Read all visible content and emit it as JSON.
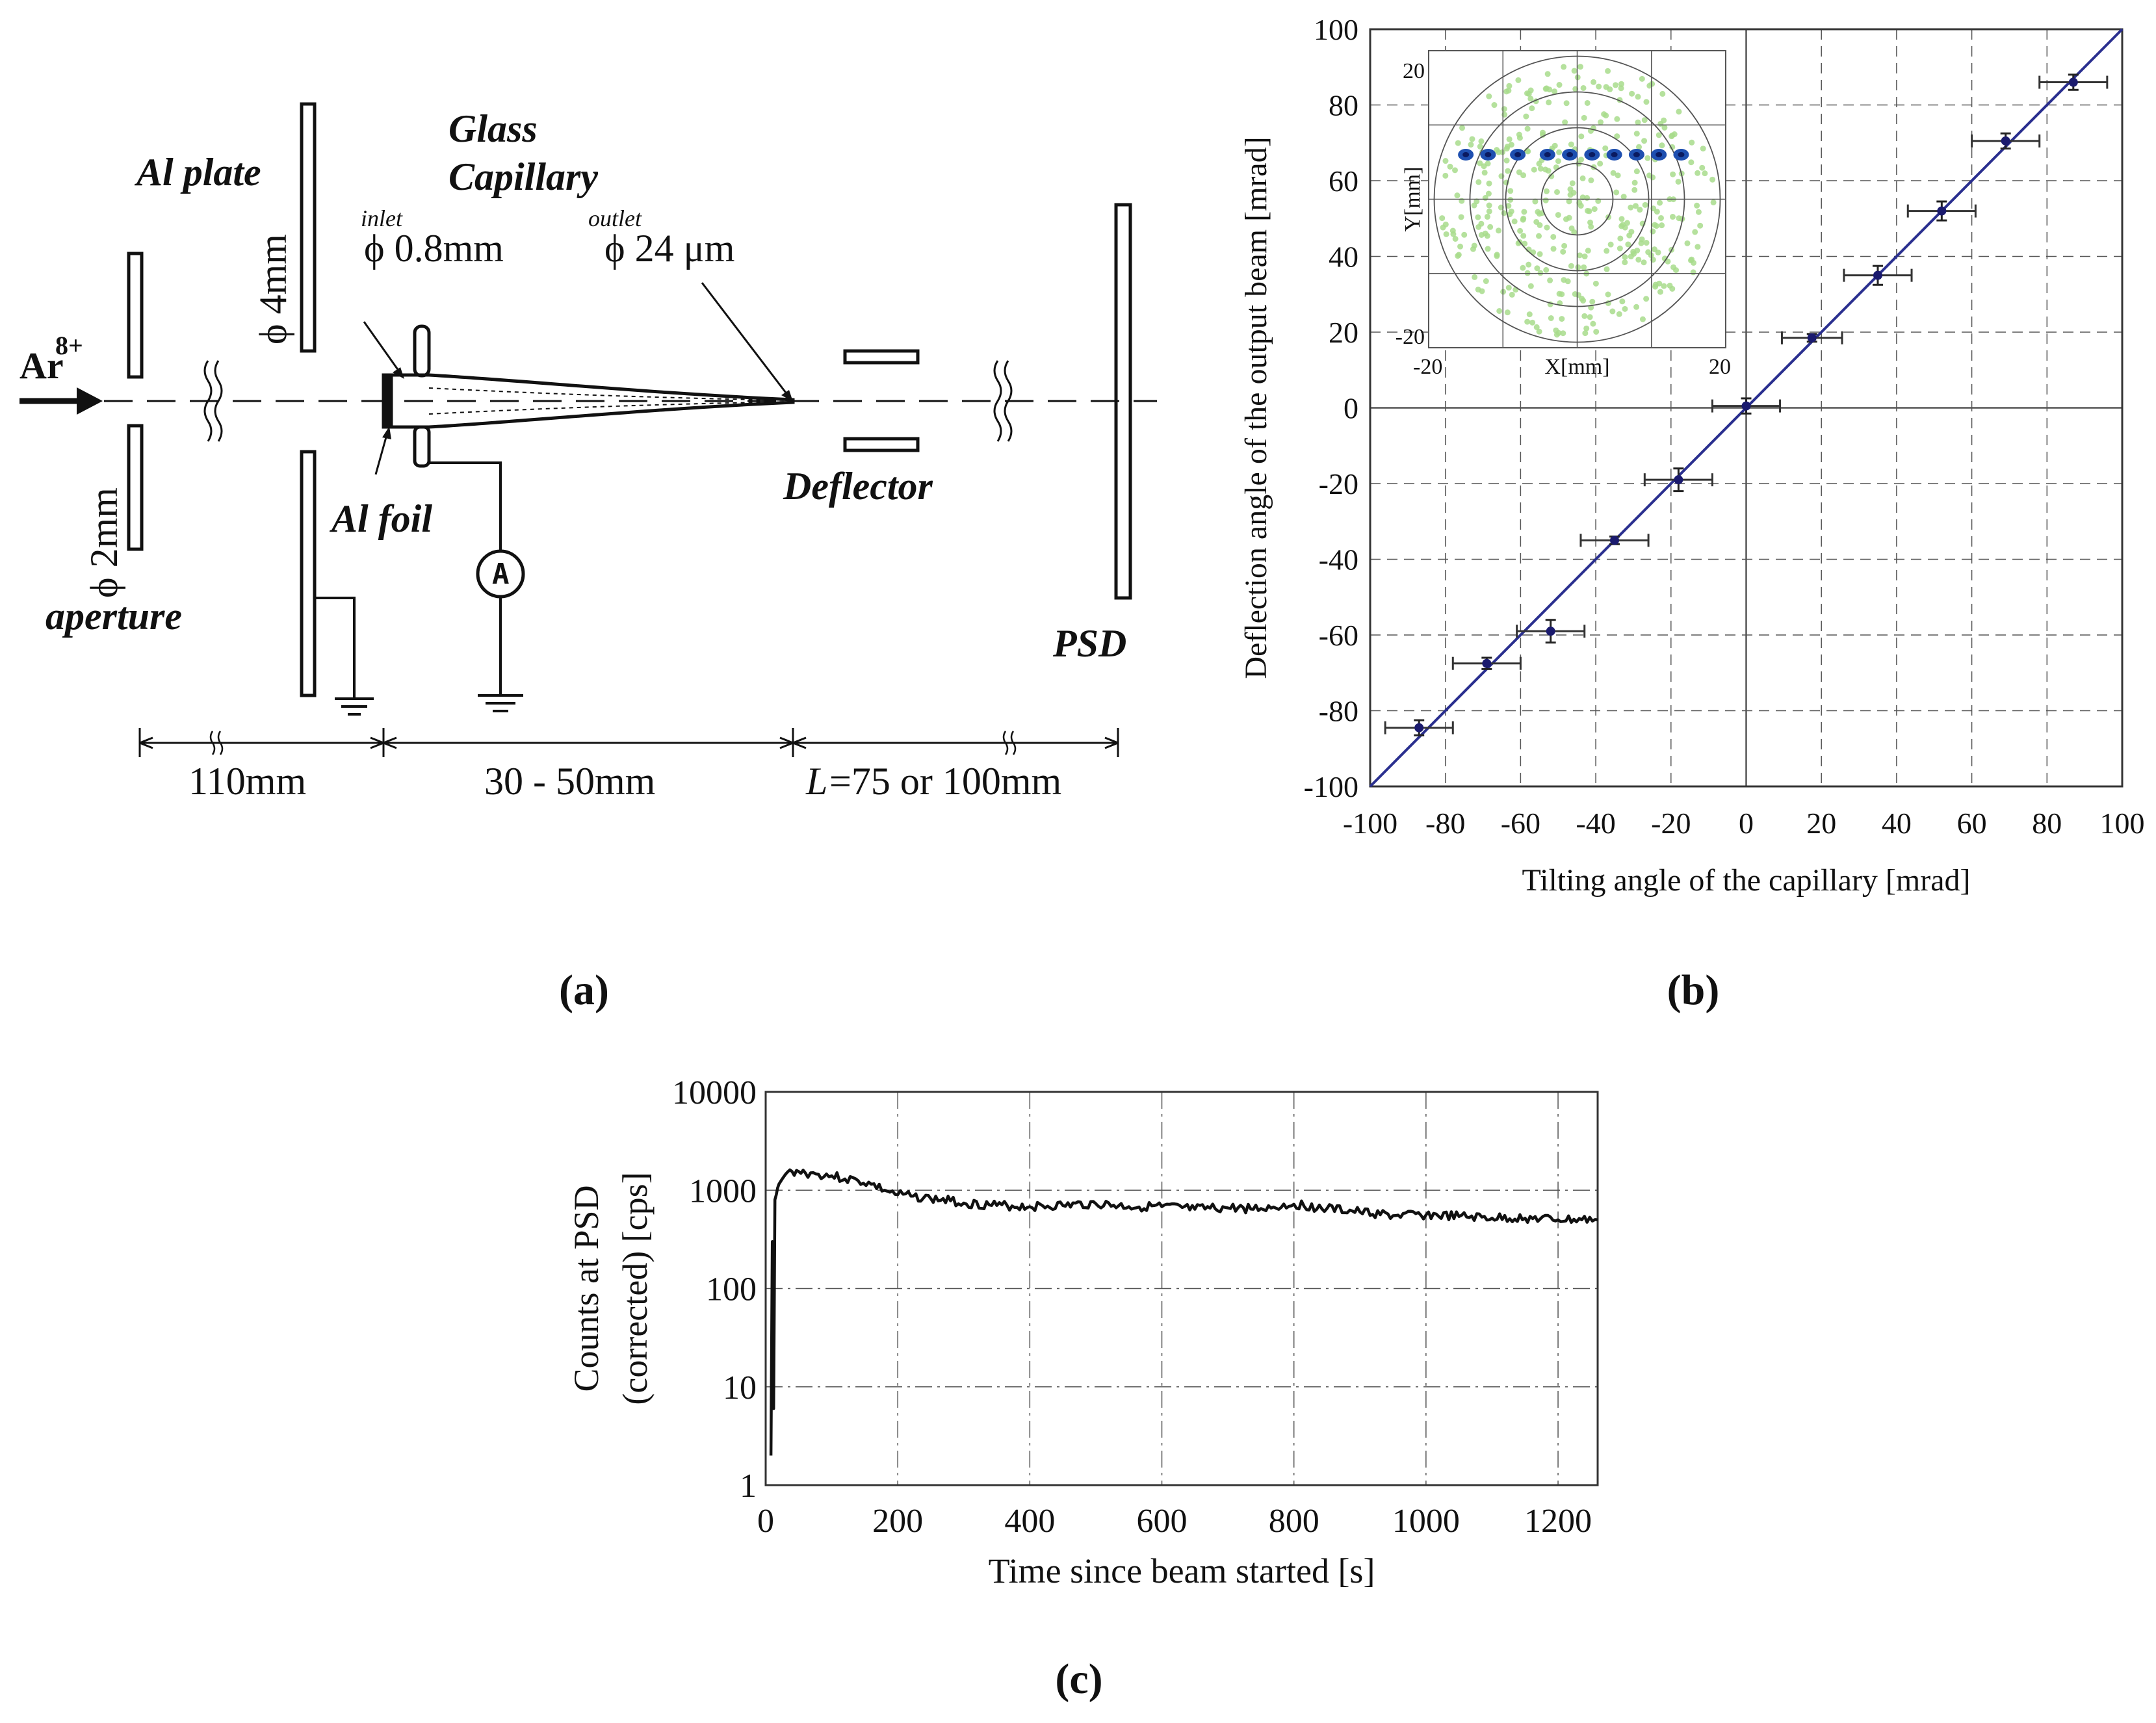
{
  "panel_a": {
    "ion_base": "Ar",
    "ion_charge": "8+",
    "al_plate": "Al plate",
    "glass": "Glass",
    "capillary": "Capillary",
    "inlet": "inlet",
    "inlet_dia": "ϕ 0.8mm",
    "outlet": "outlet",
    "outlet_dia": "ϕ 24 μm",
    "plate_dia": "ϕ 4mm",
    "aperture_dia": "ϕ 2mm",
    "aperture": "aperture",
    "al_foil": "Al foil",
    "ammeter": "A",
    "deflector": "Deflector",
    "psd": "PSD",
    "dist1": "110mm",
    "dist2": "30 - 50mm",
    "dist3_L": "L",
    "dist3_rest": "=75 or 100mm",
    "caption": "(a)"
  },
  "chart_data": [
    {
      "id": "b",
      "type": "scatter",
      "xlabel": "Tilting angle of the capillary [mrad]",
      "ylabel": "Deflection angle of the output beam [mrad]",
      "xlim": [
        -100,
        100
      ],
      "ylim": [
        -100,
        100
      ],
      "x_ticks": [
        "-100",
        "-80",
        "-60",
        "-40",
        "-20",
        "0",
        "20",
        "40",
        "60",
        "80",
        "100"
      ],
      "y_ticks": [
        "100",
        "80",
        "60",
        "40",
        "20",
        "0",
        "-20",
        "-40",
        "-60",
        "-80",
        "-100"
      ],
      "grid": true,
      "line": {
        "type": "y=x",
        "color": "#2a2f8f"
      },
      "points": [
        {
          "x": -87,
          "y": -84.5,
          "xerr": 9,
          "yerr": 2
        },
        {
          "x": -69,
          "y": -67.5,
          "xerr": 9,
          "yerr": 1.5
        },
        {
          "x": -52,
          "y": -59,
          "xerr": 9,
          "yerr": 3
        },
        {
          "x": -35,
          "y": -35,
          "xerr": 9,
          "yerr": 1
        },
        {
          "x": -18,
          "y": -19,
          "xerr": 9,
          "yerr": 3
        },
        {
          "x": 0,
          "y": 0.5,
          "xerr": 9,
          "yerr": 2
        },
        {
          "x": 17.5,
          "y": 18.5,
          "xerr": 8,
          "yerr": 1
        },
        {
          "x": 35,
          "y": 35,
          "xerr": 9,
          "yerr": 2.5
        },
        {
          "x": 52,
          "y": 52,
          "xerr": 9,
          "yerr": 2.5
        },
        {
          "x": 69,
          "y": 70.5,
          "xerr": 9,
          "yerr": 2
        },
        {
          "x": 87,
          "y": 86,
          "xerr": 9,
          "yerr": 2
        }
      ],
      "inset": {
        "xlabel": "X[mm]",
        "ylabel": "Y[mm]",
        "x_ticks": [
          "-20",
          "20"
        ],
        "y_ticks": [
          "20",
          "-20"
        ],
        "xlim": [
          -20,
          20
        ],
        "ylim": [
          -20,
          20
        ],
        "spot_y": 6,
        "spot_x": [
          -15,
          -12,
          -8,
          -4,
          -1,
          2,
          5,
          8,
          11,
          14
        ]
      },
      "caption": "(b)"
    },
    {
      "id": "c",
      "type": "line",
      "xlabel": "Time since beam started [s]",
      "ylabel_line1": "Counts at PSD",
      "ylabel_line2": "(corrected) [cps]",
      "yscale": "log",
      "xlim": [
        0,
        1260
      ],
      "ylim": [
        1,
        10000
      ],
      "x_ticks": [
        "0",
        "200",
        "400",
        "600",
        "800",
        "1000",
        "1200"
      ],
      "y_ticks": [
        "10000",
        "1000",
        "100",
        "10",
        "1"
      ],
      "series": [
        {
          "name": "counts",
          "x": [
            8,
            10,
            12,
            14,
            16,
            18,
            20,
            25,
            30,
            40,
            50,
            60,
            80,
            100,
            120,
            140,
            160,
            180,
            200,
            220,
            250,
            280,
            300,
            350,
            400,
            450,
            500,
            550,
            600,
            650,
            700,
            750,
            800,
            850,
            900,
            950,
            1000,
            1050,
            1100,
            1150,
            1200,
            1260
          ],
          "y": [
            2,
            300,
            6,
            800,
            900,
            1050,
            1150,
            1300,
            1450,
            1550,
            1550,
            1500,
            1450,
            1400,
            1300,
            1250,
            1150,
            1000,
            900,
            870,
            820,
            780,
            740,
            700,
            680,
            700,
            730,
            680,
            680,
            640,
            660,
            650,
            720,
            650,
            600,
            550,
            560,
            540,
            520,
            520,
            500,
            500
          ]
        }
      ],
      "caption": "(c)"
    }
  ]
}
